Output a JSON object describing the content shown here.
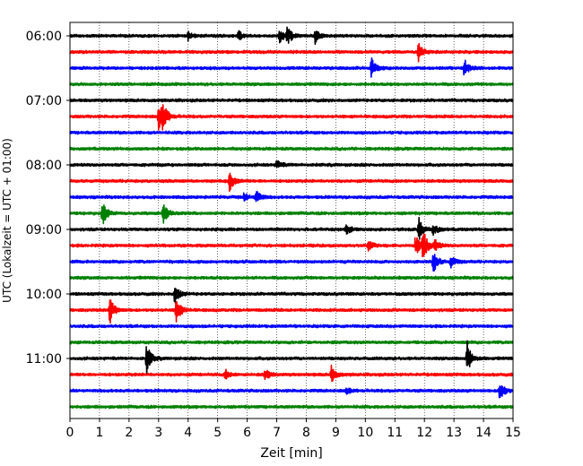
{
  "chart_data": {
    "type": "line",
    "title": "",
    "xlabel": "Zeit  [min]",
    "ylabel": "UTC (Lokalzeit = UTC + 01:00)",
    "xlim": [
      0,
      15
    ],
    "x_ticks": [
      "0",
      "1",
      "2",
      "3",
      "4",
      "5",
      "6",
      "7",
      "8",
      "9",
      "10",
      "11",
      "12",
      "13",
      "14",
      "15"
    ],
    "y_ticks": [
      "06:00",
      "07:00",
      "08:00",
      "09:00",
      "10:00",
      "11:00"
    ],
    "grid": "vertical dotted at each minute",
    "trace_interval_minutes": 15,
    "color_cycle": [
      "#000000",
      "#ff0000",
      "#0000ff",
      "#008000"
    ],
    "traces": [
      {
        "start": "06:00",
        "events": [
          [
            4.0,
            0.35
          ],
          [
            5.7,
            0.4
          ],
          [
            7.1,
            0.55
          ],
          [
            7.35,
            0.75
          ],
          [
            8.3,
            0.6
          ]
        ]
      },
      {
        "start": "06:15",
        "events": [
          [
            11.8,
            0.7
          ]
        ]
      },
      {
        "start": "06:30",
        "events": [
          [
            10.2,
            0.8
          ],
          [
            13.35,
            0.7
          ]
        ]
      },
      {
        "start": "06:45",
        "events": []
      },
      {
        "start": "07:00",
        "events": []
      },
      {
        "start": "07:15",
        "events": [
          [
            3.0,
            1.3
          ],
          [
            3.15,
            0.9
          ]
        ]
      },
      {
        "start": "07:30",
        "events": []
      },
      {
        "start": "07:45",
        "events": []
      },
      {
        "start": "08:00",
        "events": [
          [
            7.0,
            0.35
          ]
        ]
      },
      {
        "start": "08:15",
        "events": [
          [
            5.4,
            0.8
          ]
        ]
      },
      {
        "start": "08:30",
        "events": [
          [
            5.9,
            0.3
          ],
          [
            6.3,
            0.6
          ]
        ]
      },
      {
        "start": "08:45",
        "events": [
          [
            1.1,
            1.0
          ],
          [
            3.15,
            0.9
          ]
        ]
      },
      {
        "start": "09:00",
        "events": [
          [
            9.35,
            0.45
          ],
          [
            11.8,
            1.0
          ],
          [
            12.3,
            0.5
          ]
        ]
      },
      {
        "start": "09:15",
        "events": [
          [
            10.1,
            0.45
          ],
          [
            11.7,
            0.8
          ],
          [
            11.95,
            1.3
          ],
          [
            12.35,
            0.45
          ]
        ]
      },
      {
        "start": "09:30",
        "events": [
          [
            12.3,
            1.0
          ],
          [
            12.9,
            0.5
          ]
        ]
      },
      {
        "start": "09:45",
        "events": []
      },
      {
        "start": "10:00",
        "events": [
          [
            3.55,
            0.8
          ]
        ]
      },
      {
        "start": "10:15",
        "events": [
          [
            1.35,
            1.1
          ],
          [
            3.6,
            1.1
          ]
        ]
      },
      {
        "start": "10:30",
        "events": []
      },
      {
        "start": "10:45",
        "events": []
      },
      {
        "start": "11:00",
        "events": [
          [
            2.6,
            1.2
          ],
          [
            13.45,
            1.3
          ]
        ]
      },
      {
        "start": "11:15",
        "events": [
          [
            5.25,
            0.4
          ],
          [
            6.6,
            0.5
          ],
          [
            8.85,
            0.7
          ]
        ]
      },
      {
        "start": "11:30",
        "events": [
          [
            9.35,
            0.3
          ],
          [
            14.55,
            0.9
          ]
        ]
      },
      {
        "start": "11:45",
        "events": []
      }
    ]
  }
}
